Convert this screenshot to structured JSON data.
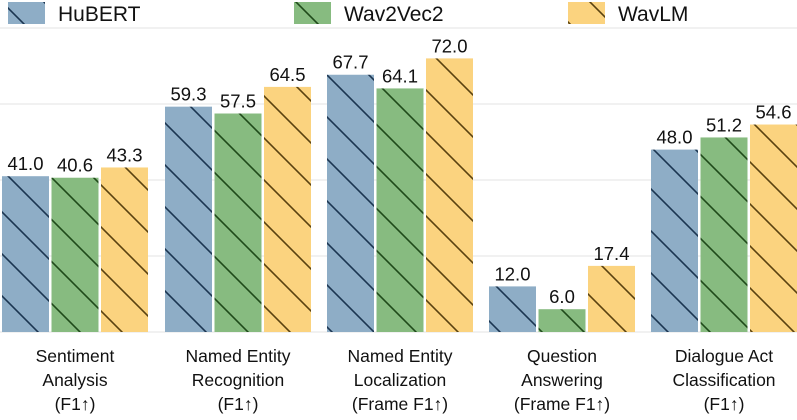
{
  "chart_data": {
    "type": "bar",
    "title": "",
    "xlabel": "",
    "ylabel": "",
    "ylim": [
      0,
      80
    ],
    "grid": true,
    "legend_position": "top",
    "categories": [
      [
        "Sentiment",
        "Analysis",
        "(F1↑)"
      ],
      [
        "Named Entity",
        "Recognition",
        "(F1↑)"
      ],
      [
        "Named Entity",
        "Localization",
        "(Frame F1↑)"
      ],
      [
        "Question",
        "Answering",
        "(Frame F1↑)"
      ],
      [
        "Dialogue Act",
        "Classification",
        "(F1↑)"
      ]
    ],
    "series": [
      {
        "name": "HuBERT",
        "values": [
          41.0,
          59.3,
          67.7,
          12.0,
          48.0
        ],
        "labels": [
          "41.0",
          "59.3",
          "67.7",
          "12.0",
          "48.0"
        ],
        "color": "#8EADC6",
        "hatch_color": "#1B3551"
      },
      {
        "name": "Wav2Vec2",
        "values": [
          40.6,
          57.5,
          64.1,
          6.0,
          51.2
        ],
        "labels": [
          "40.6",
          "57.5",
          "64.1",
          "6.0",
          "51.2"
        ],
        "color": "#87BB80",
        "hatch_color": "#1F4A1A"
      },
      {
        "name": "WavLM",
        "values": [
          43.3,
          64.5,
          72.0,
          17.4,
          54.6
        ],
        "labels": [
          "43.3",
          "64.5",
          "72.0",
          "17.4",
          "54.6"
        ],
        "color": "#FBD37F",
        "hatch_color": "#5A4210"
      }
    ]
  }
}
